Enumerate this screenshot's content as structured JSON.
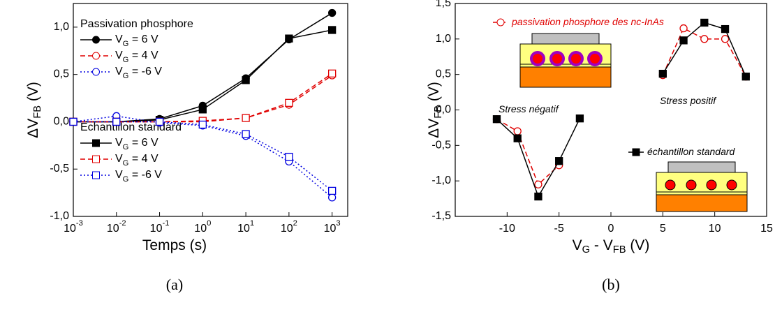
{
  "chart_data": [
    {
      "type": "line",
      "xscale": "log",
      "caption": "(a)",
      "xlabel": "Temps (s)",
      "ylabel": "ΔV_FB (V)",
      "legend_groups": [
        "Passivation phosphore",
        "Echantillon standard"
      ],
      "x": [
        0.001,
        0.01,
        0.1,
        1,
        10,
        100,
        1000
      ],
      "xlim": [
        0.001,
        2300
      ],
      "xticks": [
        {
          "value": 0.001,
          "label": "10^-3"
        },
        {
          "value": 0.01,
          "label": "10^-2"
        },
        {
          "value": 0.1,
          "label": "10^-1"
        },
        {
          "value": 1,
          "label": "10^0"
        },
        {
          "value": 10,
          "label": "10^1"
        },
        {
          "value": 100,
          "label": "10^2"
        },
        {
          "value": 1000,
          "label": "10^3"
        }
      ],
      "ylim": [
        -1.0,
        1.25
      ],
      "yticks": [
        {
          "value": -1.0,
          "label": "-1,0"
        },
        {
          "value": -0.5,
          "label": "-0,5"
        },
        {
          "value": 0,
          "label": "0,0"
        },
        {
          "value": 0.5,
          "label": "0,5"
        },
        {
          "value": 1.0,
          "label": "1,0"
        }
      ],
      "series": [
        {
          "name": "V_G = 6 V",
          "color": "#000000",
          "marker": "circle",
          "filled": true,
          "dash": "solid",
          "values": [
            0,
            0,
            0.03,
            0.17,
            0.46,
            0.87,
            1.15
          ]
        },
        {
          "name": "V_G = 4 V",
          "color": "#e00000",
          "marker": "circle",
          "filled": false,
          "dash": "dashed",
          "values": [
            0,
            0,
            0,
            0,
            0.04,
            0.18,
            0.49
          ]
        },
        {
          "name": "V_G = -6 V",
          "color": "#0000e0",
          "marker": "circle",
          "filled": false,
          "dash": "dotted",
          "values": [
            0,
            0.06,
            -0.01,
            -0.04,
            -0.15,
            -0.42,
            -0.8
          ]
        },
        {
          "name": "V_G = 6 V",
          "color": "#000000",
          "marker": "square",
          "filled": true,
          "dash": "solid",
          "values": [
            0,
            0,
            0.02,
            0.13,
            0.44,
            0.88,
            0.97
          ]
        },
        {
          "name": "V_G = 4 V",
          "color": "#e00000",
          "marker": "square",
          "filled": false,
          "dash": "dashed",
          "values": [
            0,
            0,
            0,
            0.01,
            0.04,
            0.2,
            0.51
          ]
        },
        {
          "name": "V_G = -6 V",
          "color": "#0000e0",
          "marker": "square",
          "filled": false,
          "dash": "dotted",
          "values": [
            0,
            0,
            0,
            -0.03,
            -0.13,
            -0.37,
            -0.73
          ]
        }
      ]
    },
    {
      "type": "line",
      "xscale": "linear",
      "caption": "(b)",
      "xlabel": "V_G - V_FB (V)",
      "ylabel": "ΔV_FB (V)",
      "annotations": [
        "Stress négatif",
        "Stress positif"
      ],
      "xlim": [
        -15,
        15
      ],
      "xticks": [
        -10,
        -5,
        0,
        5,
        10,
        15
      ],
      "ylim": [
        -1.5,
        1.5
      ],
      "yticks": [
        {
          "value": -1.5,
          "label": "-1,5"
        },
        {
          "value": -1.0,
          "label": "-1,0"
        },
        {
          "value": -0.5,
          "label": "-0,5"
        },
        {
          "value": 0,
          "label": "0,0"
        },
        {
          "value": 0.5,
          "label": "0,5"
        },
        {
          "value": 1.0,
          "label": "1,0"
        },
        {
          "value": 1.5,
          "label": "1,5"
        }
      ],
      "series": [
        {
          "name": "passivation phosphore des nc-InAs",
          "color": "#e00000",
          "marker": "circle",
          "filled": false,
          "dash": "dashed",
          "x": [
            -11,
            -9,
            -7,
            -5,
            5,
            7,
            9,
            11,
            13
          ],
          "values": [
            -0.13,
            -0.3,
            -1.05,
            -0.78,
            0.49,
            1.15,
            1.0,
            1.0,
            0.47
          ]
        },
        {
          "name": "échantillon standard",
          "color": "#000000",
          "marker": "square",
          "filled": true,
          "dash": "solid",
          "x": [
            -11,
            -9,
            -7,
            -5,
            -3,
            5,
            7,
            9,
            11,
            13
          ],
          "values": [
            -0.13,
            -0.4,
            -1.22,
            -0.72,
            -0.12,
            0.51,
            0.98,
            1.23,
            1.14,
            0.47
          ]
        }
      ]
    }
  ]
}
